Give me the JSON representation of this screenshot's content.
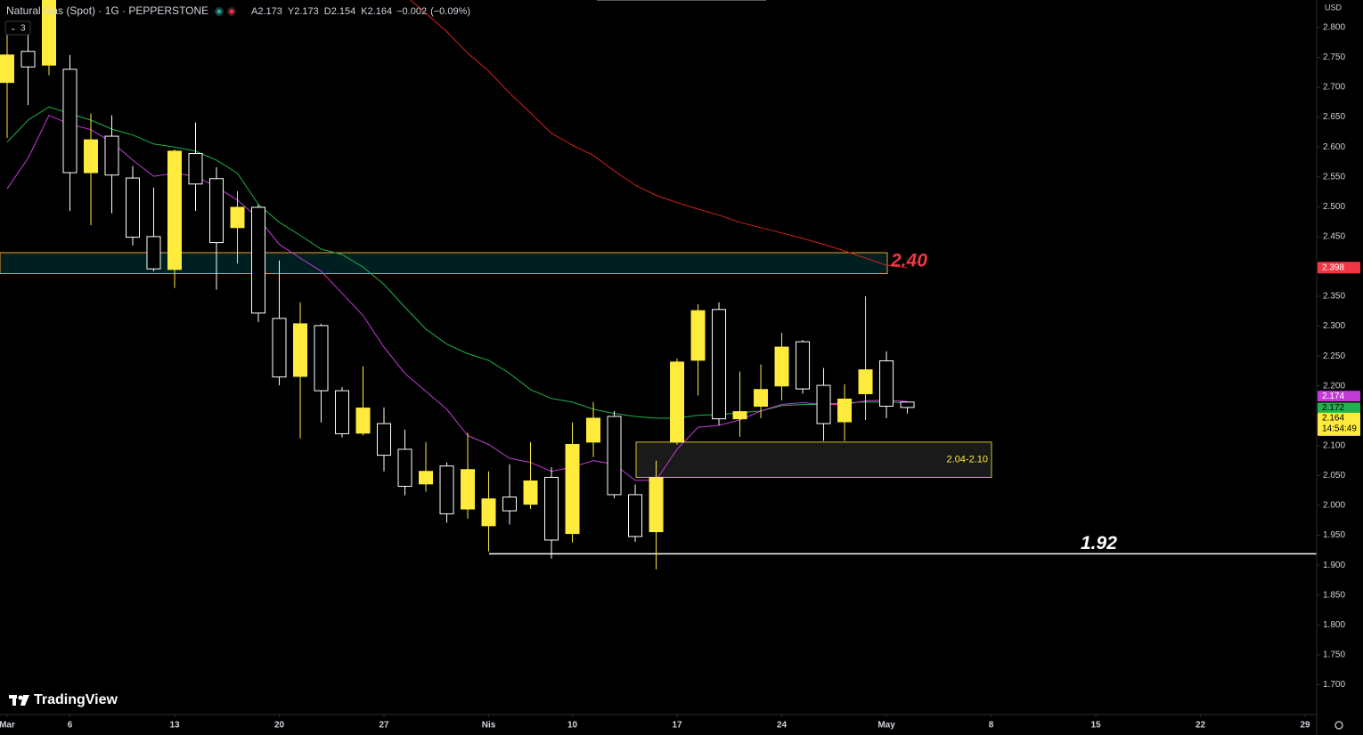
{
  "chart_data": {
    "type": "candlestick",
    "title": "Natural Gas (Spot) · 1G · PEPPERSTONE",
    "ohlc_letters": [
      "A",
      "Y",
      "D",
      "K"
    ],
    "change": {
      "value": -0.002,
      "label": "−0.002"
    },
    "change_pct": {
      "value": -0.09,
      "label": "(−0.09%)"
    },
    "indicator_count": 3,
    "currency": "USD",
    "countdown": "14:54:49",
    "brand": "TradingView",
    "xlim": [
      -0.34,
      62.55
    ],
    "ylim": [
      1.65,
      2.846
    ],
    "xticks": [
      {
        "value": 0,
        "label": "Mar"
      },
      {
        "value": 3,
        "label": "6"
      },
      {
        "value": 8,
        "label": "13"
      },
      {
        "value": 13,
        "label": "20"
      },
      {
        "value": 18,
        "label": "27"
      },
      {
        "value": 23,
        "label": "Nis"
      },
      {
        "value": 27,
        "label": "10"
      },
      {
        "value": 32,
        "label": "17"
      },
      {
        "value": 37,
        "label": "24"
      },
      {
        "value": 42,
        "label": "May"
      },
      {
        "value": 47,
        "label": "8"
      },
      {
        "value": 52,
        "label": "15"
      },
      {
        "value": 57,
        "label": "22"
      },
      {
        "value": 62,
        "label": "29"
      }
    ],
    "yticks": [
      {
        "value": 2.8,
        "label": "2.800"
      },
      {
        "value": 2.75,
        "label": "2.750"
      },
      {
        "value": 2.7,
        "label": "2.700"
      },
      {
        "value": 2.65,
        "label": "2.650"
      },
      {
        "value": 2.6,
        "label": "2.600"
      },
      {
        "value": 2.55,
        "label": "2.550"
      },
      {
        "value": 2.5,
        "label": "2.500"
      },
      {
        "value": 2.45,
        "label": "2.450"
      },
      {
        "value": 2.4,
        "label": "2.400"
      },
      {
        "value": 2.35,
        "label": "2.350"
      },
      {
        "value": 2.3,
        "label": "2.300"
      },
      {
        "value": 2.25,
        "label": "2.250"
      },
      {
        "value": 2.2,
        "label": "2.200"
      },
      {
        "value": 2.15,
        "label": "2.150"
      },
      {
        "value": 2.1,
        "label": "2.100"
      },
      {
        "value": 2.05,
        "label": "2.050"
      },
      {
        "value": 2.0,
        "label": "2.000"
      },
      {
        "value": 1.95,
        "label": "1.950"
      },
      {
        "value": 1.9,
        "label": "1.900"
      },
      {
        "value": 1.85,
        "label": "1.850"
      },
      {
        "value": 1.8,
        "label": "1.800"
      },
      {
        "value": 1.75,
        "label": "1.750"
      },
      {
        "value": 1.7,
        "label": "1.700"
      }
    ],
    "candles": {
      "up_color": "#ffeb3b",
      "down_color": "#ffffff",
      "open": [
        2.708,
        2.76,
        2.737,
        2.73,
        2.557,
        2.618,
        2.548,
        2.45,
        2.395,
        2.589,
        2.547,
        2.465,
        2.499,
        2.313,
        2.216,
        2.301,
        2.192,
        2.121,
        2.137,
        2.094,
        2.036,
        2.066,
        1.994,
        1.966,
        2.014,
        2.002,
        2.047,
        1.953,
        2.106,
        2.149,
        2.018,
        1.956,
        2.106,
        2.243,
        2.328,
        2.145,
        2.166,
        2.2,
        2.274,
        2.201,
        2.14,
        2.187,
        2.242,
        2.173
      ],
      "high": [
        2.8,
        2.804,
        2.88,
        2.754,
        2.656,
        2.653,
        2.568,
        2.532,
        2.596,
        2.641,
        2.566,
        2.526,
        2.504,
        2.41,
        2.34,
        2.304,
        2.198,
        2.233,
        2.164,
        2.127,
        2.106,
        2.072,
        2.122,
        2.057,
        2.069,
        2.106,
        2.064,
        2.139,
        2.173,
        2.158,
        2.035,
        2.075,
        2.246,
        2.337,
        2.34,
        2.224,
        2.236,
        2.289,
        2.277,
        2.23,
        2.203,
        2.35,
        2.258,
        2.173
      ],
      "low": [
        2.615,
        2.67,
        2.72,
        2.493,
        2.469,
        2.489,
        2.435,
        2.392,
        2.364,
        2.493,
        2.361,
        2.405,
        2.307,
        2.201,
        2.112,
        2.139,
        2.114,
        2.117,
        2.057,
        2.017,
        2.023,
        1.971,
        1.978,
        1.923,
        1.968,
        1.994,
        1.911,
        1.938,
        2.081,
        2.012,
        1.939,
        1.893,
        2.102,
        2.184,
        2.134,
        2.115,
        2.146,
        2.176,
        2.187,
        2.108,
        2.108,
        2.143,
        2.146,
        2.154
      ],
      "close": [
        2.754,
        2.734,
        2.87,
        2.557,
        2.612,
        2.553,
        2.449,
        2.396,
        2.593,
        2.538,
        2.44,
        2.499,
        2.322,
        2.215,
        2.304,
        2.192,
        2.12,
        2.163,
        2.084,
        2.032,
        2.057,
        1.986,
        2.06,
        2.011,
        1.991,
        2.041,
        1.942,
        2.102,
        2.146,
        2.018,
        1.948,
        2.047,
        2.24,
        2.326,
        2.145,
        2.157,
        2.194,
        2.265,
        2.195,
        2.137,
        2.178,
        2.227,
        2.166,
        2.164
      ]
    },
    "series": [
      {
        "color": "#22b14c",
        "values": [
          2.608,
          2.645,
          2.667,
          2.656,
          2.645,
          2.63,
          2.62,
          2.605,
          2.6,
          2.593,
          2.578,
          2.556,
          2.504,
          2.474,
          2.452,
          2.429,
          2.42,
          2.399,
          2.37,
          2.332,
          2.295,
          2.27,
          2.254,
          2.243,
          2.221,
          2.194,
          2.179,
          2.173,
          2.161,
          2.154,
          2.149,
          2.146,
          2.146,
          2.151,
          2.152,
          2.155,
          2.158,
          2.167,
          2.169,
          2.169,
          2.172,
          2.173,
          2.173,
          2.172
        ]
      },
      {
        "color": "#c23bd4",
        "values": [
          2.53,
          2.581,
          2.653,
          2.638,
          2.629,
          2.608,
          2.578,
          2.551,
          2.556,
          2.551,
          2.533,
          2.511,
          2.481,
          2.437,
          2.414,
          2.392,
          2.355,
          2.318,
          2.265,
          2.221,
          2.191,
          2.161,
          2.117,
          2.102,
          2.079,
          2.072,
          2.057,
          2.064,
          2.075,
          2.069,
          2.042,
          2.042,
          2.094,
          2.131,
          2.134,
          2.143,
          2.158,
          2.169,
          2.172,
          2.169,
          2.169,
          2.175,
          2.176,
          2.174
        ]
      },
      {
        "color": "#d61f1f",
        "values": [
          null,
          null,
          null,
          null,
          null,
          null,
          null,
          null,
          null,
          null,
          null,
          null,
          null,
          null,
          null,
          null,
          null,
          null,
          2.883,
          2.854,
          2.824,
          2.793,
          2.757,
          2.727,
          2.69,
          2.657,
          2.623,
          2.603,
          2.586,
          2.56,
          2.536,
          2.519,
          2.507,
          2.496,
          2.486,
          2.474,
          2.465,
          2.456,
          2.447,
          2.437,
          2.426,
          2.414,
          2.402,
          2.398
        ]
      }
    ],
    "zones": [
      {
        "label": "2.40",
        "low": 2.388,
        "high": 2.423,
        "color": "#f0a030",
        "label_color": "#f23645"
      },
      {
        "label": "2.04-2.10",
        "low": 2.047,
        "high": 2.106,
        "color": "#d4c21a",
        "label_color": "#ffeb3b"
      }
    ],
    "levels": [
      {
        "label": "1.92",
        "value": 1.919,
        "color": "#ffffff"
      }
    ]
  }
}
